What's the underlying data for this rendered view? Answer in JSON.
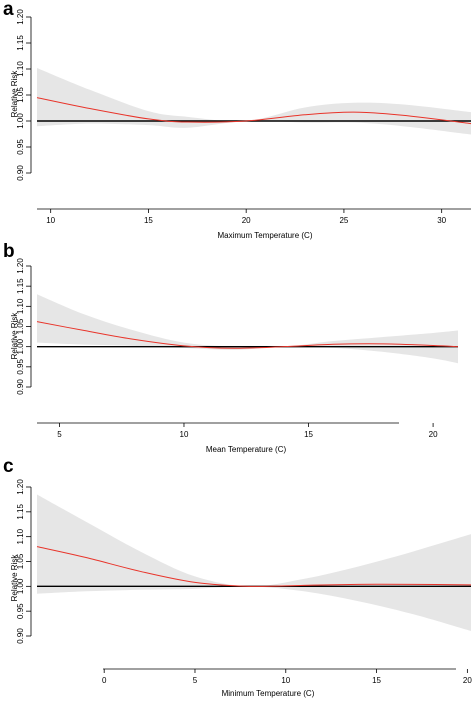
{
  "figure": {
    "panels": [
      {
        "letter": "a",
        "ylabel": "Relative Risk",
        "xlabel": "Maximum Temperature (C)"
      },
      {
        "letter": "b",
        "ylabel": "Relative Risk",
        "xlabel": "Mean Temperature (C)"
      },
      {
        "letter": "c",
        "ylabel": "Relative Risk",
        "xlabel": "Minimum Temperature (C)"
      }
    ]
  },
  "colors": {
    "curve": "#e8342a",
    "ci_band": "#e6e6e6",
    "reference_line": "#000000",
    "axis": "#000000"
  },
  "chart_data": [
    {
      "type": "line",
      "panel": "a",
      "xlabel": "Maximum Temperature (C)",
      "ylabel": "Relative Risk",
      "xlim": [
        9.3,
        31.5
      ],
      "ylim": [
        0.9,
        1.2
      ],
      "xticks": [
        10,
        15,
        20,
        25,
        30
      ],
      "yticks": [
        0.9,
        0.95,
        1.0,
        1.05,
        1.1,
        1.15,
        1.2
      ],
      "reference_y": 1.0,
      "x": [
        9.3,
        12,
        15,
        17,
        20,
        23,
        25.5,
        28,
        31.5
      ],
      "y": [
        1.045,
        1.024,
        1.004,
        0.998,
        1.0,
        1.012,
        1.017,
        1.011,
        0.995
      ],
      "ci_lower": [
        0.99,
        0.995,
        0.992,
        0.987,
        1.0,
        0.997,
        0.997,
        0.99,
        0.974
      ],
      "ci_upper": [
        1.102,
        1.06,
        1.019,
        1.008,
        1.0,
        1.026,
        1.035,
        1.032,
        1.017
      ]
    },
    {
      "type": "line",
      "panel": "b",
      "xlabel": "Mean Temperature (C)",
      "ylabel": "Relative Risk",
      "xlim": [
        4.1,
        21
      ],
      "ylim": [
        0.9,
        1.2
      ],
      "xticks": [
        5,
        10,
        15,
        20
      ],
      "yticks": [
        0.9,
        0.95,
        1.0,
        1.05,
        1.1,
        1.15,
        1.2
      ],
      "reference_y": 1.0,
      "x": [
        4.1,
        6,
        8,
        10,
        12,
        14,
        16,
        18,
        20,
        21
      ],
      "y": [
        1.062,
        1.04,
        1.018,
        1.002,
        0.996,
        1.0,
        1.006,
        1.007,
        1.003,
        1.0
      ],
      "ci_lower": [
        1.01,
        1.005,
        1.002,
        0.997,
        0.992,
        1.0,
        0.997,
        0.987,
        0.971,
        0.959
      ],
      "ci_upper": [
        1.13,
        1.08,
        1.04,
        1.01,
        1.0,
        1.0,
        1.014,
        1.024,
        1.034,
        1.04
      ]
    },
    {
      "type": "line",
      "panel": "c",
      "xlabel": "Minimum Temperature (C)",
      "ylabel": "Relative Risk",
      "xlim": [
        -3.7,
        20.2
      ],
      "ylim": [
        0.9,
        1.2
      ],
      "xticks": [
        0,
        5,
        10,
        15,
        20
      ],
      "yticks": [
        0.9,
        0.95,
        1.0,
        1.05,
        1.1,
        1.15,
        1.2
      ],
      "reference_y": 1.0,
      "x": [
        -3.7,
        -1,
        2,
        5,
        8,
        11,
        14,
        17,
        20.2
      ],
      "y": [
        1.08,
        1.058,
        1.03,
        1.008,
        1.0,
        1.002,
        1.004,
        1.004,
        1.003
      ],
      "ci_lower": [
        0.985,
        0.99,
        0.993,
        0.995,
        1.0,
        0.99,
        0.97,
        0.944,
        0.91
      ],
      "ci_upper": [
        1.185,
        1.13,
        1.07,
        1.02,
        1.0,
        1.015,
        1.04,
        1.07,
        1.105
      ]
    }
  ]
}
